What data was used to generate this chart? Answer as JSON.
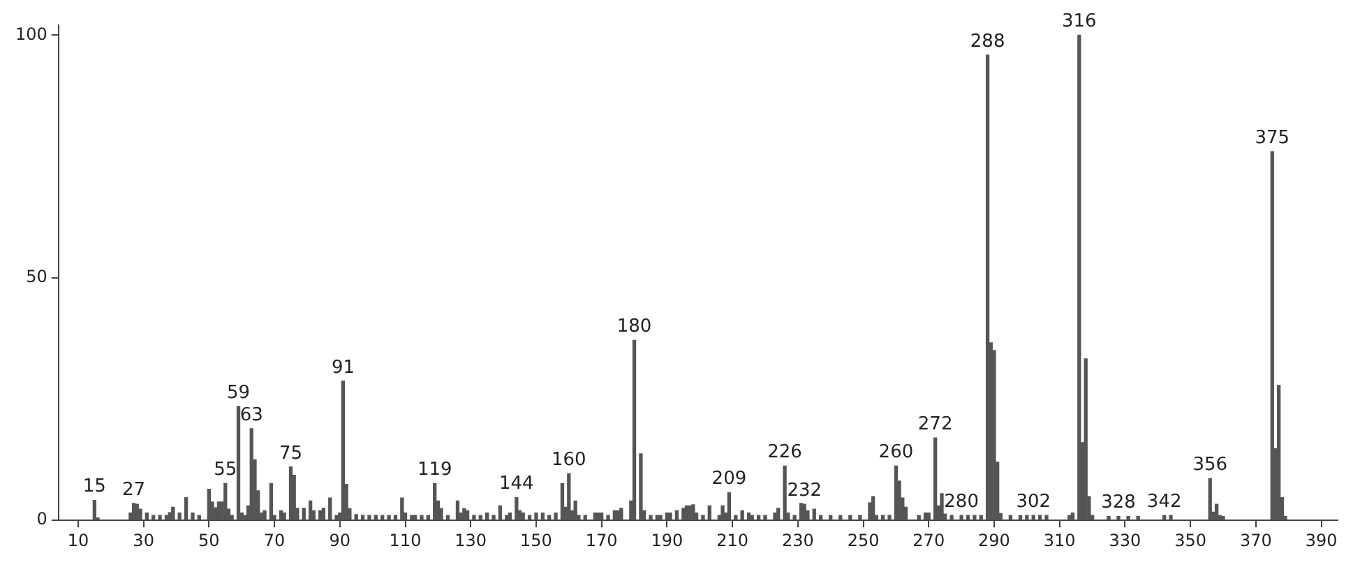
{
  "chart_data": {
    "type": "bar",
    "x": [
      15,
      16,
      26,
      27,
      28,
      29,
      31,
      33,
      35,
      37,
      38,
      39,
      41,
      43,
      45,
      47,
      50,
      51,
      52,
      53,
      54,
      55,
      56,
      57,
      59,
      60,
      61,
      62,
      63,
      64,
      65,
      66,
      67,
      69,
      70,
      72,
      73,
      75,
      76,
      77,
      79,
      81,
      82,
      84,
      85,
      87,
      89,
      90,
      91,
      92,
      93,
      95,
      97,
      99,
      101,
      103,
      105,
      107,
      109,
      110,
      112,
      113,
      115,
      117,
      119,
      120,
      121,
      123,
      126,
      127,
      128,
      129,
      131,
      133,
      135,
      137,
      139,
      141,
      142,
      144,
      145,
      146,
      148,
      150,
      152,
      154,
      156,
      158,
      159,
      160,
      161,
      162,
      163,
      165,
      168,
      169,
      170,
      172,
      174,
      175,
      176,
      179,
      180,
      182,
      183,
      185,
      187,
      188,
      190,
      191,
      193,
      195,
      196,
      197,
      198,
      199,
      201,
      203,
      206,
      207,
      208,
      209,
      211,
      213,
      215,
      216,
      218,
      220,
      223,
      224,
      226,
      227,
      229,
      231,
      232,
      233,
      235,
      237,
      240,
      243,
      246,
      249,
      252,
      253,
      254,
      256,
      258,
      260,
      261,
      262,
      263,
      267,
      269,
      270,
      272,
      273,
      274,
      275,
      277,
      280,
      282,
      284,
      286,
      288,
      289,
      290,
      291,
      292,
      295,
      298,
      300,
      302,
      304,
      306,
      313,
      314,
      316,
      317,
      318,
      319,
      320,
      325,
      328,
      331,
      334,
      342,
      344,
      356,
      357,
      358,
      359,
      360,
      375,
      376,
      377,
      378,
      379
    ],
    "values": [
      4.1,
      0.5,
      1.5,
      3.5,
      3.3,
      2.3,
      1.5,
      1,
      1,
      1,
      1.6,
      2.7,
      1.5,
      4.7,
      1.5,
      1,
      6.4,
      3.8,
      2.6,
      3.8,
      3.8,
      7.6,
      2.3,
      1,
      23.5,
      1.5,
      1,
      3,
      18.9,
      12.5,
      6.1,
      1.5,
      2,
      7.6,
      1,
      2,
      1.5,
      11,
      9.3,
      2.5,
      2.5,
      4,
      2,
      2,
      2.5,
      4.6,
      1,
      1.5,
      28.7,
      7.4,
      2.4,
      1.2,
      1,
      1,
      1,
      1,
      1,
      1,
      4.6,
      1.5,
      1,
      1,
      1,
      1,
      7.6,
      4,
      2.4,
      1,
      4,
      1.5,
      2.4,
      2,
      1,
      1,
      1.5,
      1,
      3,
      1,
      1.5,
      4.7,
      2,
      1.5,
      1,
      1.5,
      1.5,
      1,
      1.5,
      7.6,
      2.7,
      9.6,
      2,
      4,
      1,
      1,
      1.5,
      1.5,
      1.5,
      1,
      2,
      2,
      2.5,
      4,
      37.1,
      13.7,
      2,
      1,
      1,
      1,
      1.5,
      1.5,
      2,
      2.5,
      3,
      3,
      3.2,
      1.5,
      1,
      3,
      1,
      3,
      1.5,
      5.7,
      1,
      2,
      1.5,
      1,
      1,
      1,
      1.5,
      2.5,
      11.2,
      1.5,
      1,
      3.5,
      3.3,
      2,
      2.3,
      1,
      1,
      1,
      1,
      1,
      3.6,
      4.9,
      1,
      1,
      1,
      11.2,
      8.1,
      4.6,
      2.7,
      1,
      1.5,
      1.5,
      17,
      3,
      5.5,
      1.3,
      1,
      1,
      1,
      1,
      1,
      95.9,
      36.6,
      35,
      12,
      1.4,
      1,
      1,
      1,
      1,
      1,
      1,
      1,
      1.5,
      100,
      16,
      33.3,
      4.9,
      1,
      0.8,
      0.8,
      0.8,
      0.8,
      1,
      1,
      8.6,
      1.7,
      3.3,
      1,
      0.8,
      76,
      14.8,
      27.8,
      4.7,
      0.8
    ],
    "color": "#555555",
    "xlim": [
      4,
      395
    ],
    "xticks": [
      10,
      30,
      50,
      70,
      90,
      110,
      130,
      150,
      170,
      190,
      210,
      230,
      250,
      270,
      290,
      310,
      330,
      350,
      370,
      390
    ],
    "ylim": [
      0,
      102
    ],
    "yticks": [
      0,
      50,
      100
    ],
    "annotations": [
      {
        "text": "15",
        "x": 15,
        "y": 4.1
      },
      {
        "text": "27",
        "x": 27,
        "y": 3.5
      },
      {
        "text": "55",
        "x": 55,
        "y": 7.6
      },
      {
        "text": "59",
        "x": 59,
        "y": 23.5
      },
      {
        "text": "63",
        "x": 63,
        "y": 18.9
      },
      {
        "text": "75",
        "x": 75,
        "y": 11
      },
      {
        "text": "91",
        "x": 91,
        "y": 28.7
      },
      {
        "text": "119",
        "x": 119,
        "y": 7.6
      },
      {
        "text": "144",
        "x": 144,
        "y": 4.7
      },
      {
        "text": "160",
        "x": 160,
        "y": 9.6
      },
      {
        "text": "180",
        "x": 180,
        "y": 37.1
      },
      {
        "text": "209",
        "x": 209,
        "y": 5.7
      },
      {
        "text": "226",
        "x": 226,
        "y": 11.2
      },
      {
        "text": "232",
        "x": 232,
        "y": 3.3
      },
      {
        "text": "260",
        "x": 260,
        "y": 11.2
      },
      {
        "text": "272",
        "x": 272,
        "y": 17
      },
      {
        "text": "280",
        "x": 280,
        "y": 1
      },
      {
        "text": "288",
        "x": 288,
        "y": 95.9
      },
      {
        "text": "302",
        "x": 302,
        "y": 1
      },
      {
        "text": "316",
        "x": 316,
        "y": 100
      },
      {
        "text": "328",
        "x": 328,
        "y": 0.8
      },
      {
        "text": "342",
        "x": 342,
        "y": 1
      },
      {
        "text": "356",
        "x": 356,
        "y": 8.6
      },
      {
        "text": "375",
        "x": 375,
        "y": 76
      }
    ]
  }
}
